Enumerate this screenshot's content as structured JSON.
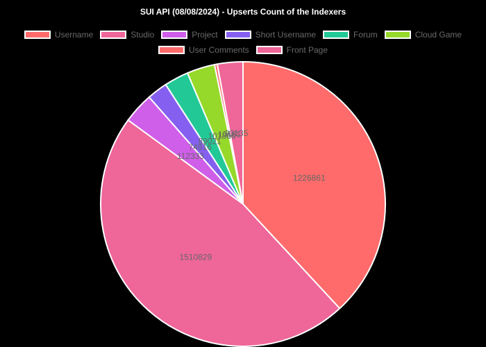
{
  "chart_data": {
    "type": "pie",
    "title": "SUI API (08/08/2024) - Upserts Count of the Indexers",
    "legend_position": "top",
    "slices": [
      {
        "label": "Username",
        "value": 1226861,
        "color": "#ff6b6b"
      },
      {
        "label": "Studio",
        "value": 1510829,
        "color": "#ef6699"
      },
      {
        "label": "Project",
        "value": 112333,
        "color": "#cf5ee8"
      },
      {
        "label": "Short Username",
        "value": 74916,
        "color": "#8560f0"
      },
      {
        "label": "Forum",
        "value": 89021,
        "color": "#22c997"
      },
      {
        "label": "Cloud Game",
        "value": 101860,
        "color": "#96d92a"
      },
      {
        "label": "User Comments",
        "value": 10181,
        "color": "#ff6b6b"
      },
      {
        "label": "Front Page",
        "value": 93135,
        "color": "#ef6699"
      }
    ]
  }
}
